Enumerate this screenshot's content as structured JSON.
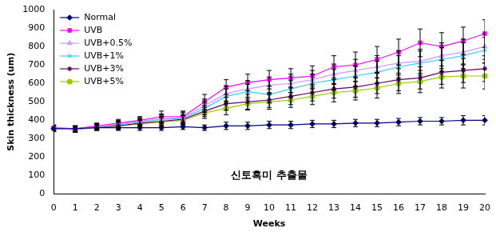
{
  "chart_data": {
    "type": "line",
    "x_label": "Weeks",
    "y_label": "Skin thickness (um)",
    "annotation": "신토흑미 추출물",
    "categories": [
      0,
      1,
      2,
      3,
      4,
      5,
      6,
      7,
      8,
      9,
      10,
      11,
      12,
      13,
      14,
      15,
      16,
      17,
      18,
      19,
      20
    ],
    "ylim": [
      0,
      1000
    ],
    "yticks": [
      0,
      100,
      200,
      300,
      400,
      500,
      600,
      700,
      800,
      900,
      1000
    ],
    "grid": false,
    "legend": "upper left",
    "series": [
      {
        "name": "Normal",
        "color": "#000080",
        "marker": "diamond",
        "values": [
          355,
          355,
          360,
          360,
          360,
          360,
          365,
          360,
          370,
          370,
          375,
          375,
          380,
          380,
          385,
          385,
          390,
          395,
          395,
          400,
          400
        ],
        "errors": [
          15,
          15,
          15,
          15,
          15,
          15,
          15,
          15,
          20,
          20,
          20,
          20,
          20,
          20,
          20,
          20,
          20,
          20,
          20,
          25,
          25
        ]
      },
      {
        "name": "UVB",
        "color": "#ff00ff",
        "marker": "square",
        "values": [
          360,
          355,
          370,
          385,
          400,
          420,
          420,
          500,
          580,
          605,
          620,
          630,
          640,
          690,
          700,
          730,
          770,
          820,
          800,
          830,
          870
        ],
        "errors": [
          15,
          15,
          15,
          20,
          20,
          30,
          30,
          40,
          40,
          45,
          50,
          50,
          55,
          60,
          70,
          70,
          70,
          75,
          75,
          75,
          75
        ]
      },
      {
        "name": "UVB+0.5%",
        "color": "#cc99ff",
        "marker": "triangle",
        "values": [
          355,
          350,
          365,
          380,
          395,
          410,
          415,
          480,
          545,
          570,
          590,
          600,
          620,
          650,
          670,
          690,
          710,
          720,
          750,
          770,
          800
        ],
        "errors": [
          15,
          15,
          15,
          20,
          20,
          25,
          30,
          35,
          40,
          45,
          45,
          50,
          50,
          55,
          60,
          60,
          65,
          65,
          70,
          70,
          70
        ]
      },
      {
        "name": "UVB+1%",
        "color": "#33ccff",
        "marker": "x",
        "values": [
          355,
          355,
          365,
          375,
          390,
          405,
          410,
          465,
          530,
          555,
          540,
          570,
          600,
          620,
          640,
          660,
          690,
          710,
          730,
          750,
          780
        ],
        "errors": [
          15,
          15,
          15,
          20,
          20,
          25,
          30,
          35,
          40,
          40,
          45,
          45,
          50,
          55,
          55,
          60,
          60,
          65,
          65,
          70,
          70
        ]
      },
      {
        "name": "UVB+3%",
        "color": "#660066",
        "marker": "star",
        "values": [
          355,
          350,
          365,
          370,
          385,
          395,
          405,
          450,
          490,
          500,
          510,
          530,
          550,
          570,
          580,
          600,
          620,
          630,
          660,
          670,
          680
        ],
        "errors": [
          15,
          15,
          15,
          20,
          20,
          25,
          25,
          30,
          35,
          40,
          40,
          45,
          45,
          50,
          55,
          55,
          60,
          60,
          65,
          65,
          70
        ]
      },
      {
        "name": "UVB+5%",
        "color": "#99cc00",
        "marker": "circle",
        "values": [
          355,
          350,
          360,
          370,
          380,
          390,
          400,
          440,
          465,
          490,
          500,
          510,
          530,
          550,
          560,
          575,
          600,
          610,
          635,
          640,
          640
        ],
        "errors": [
          15,
          15,
          15,
          20,
          20,
          25,
          25,
          30,
          35,
          35,
          40,
          40,
          45,
          50,
          50,
          55,
          55,
          60,
          60,
          65,
          70
        ]
      }
    ]
  }
}
